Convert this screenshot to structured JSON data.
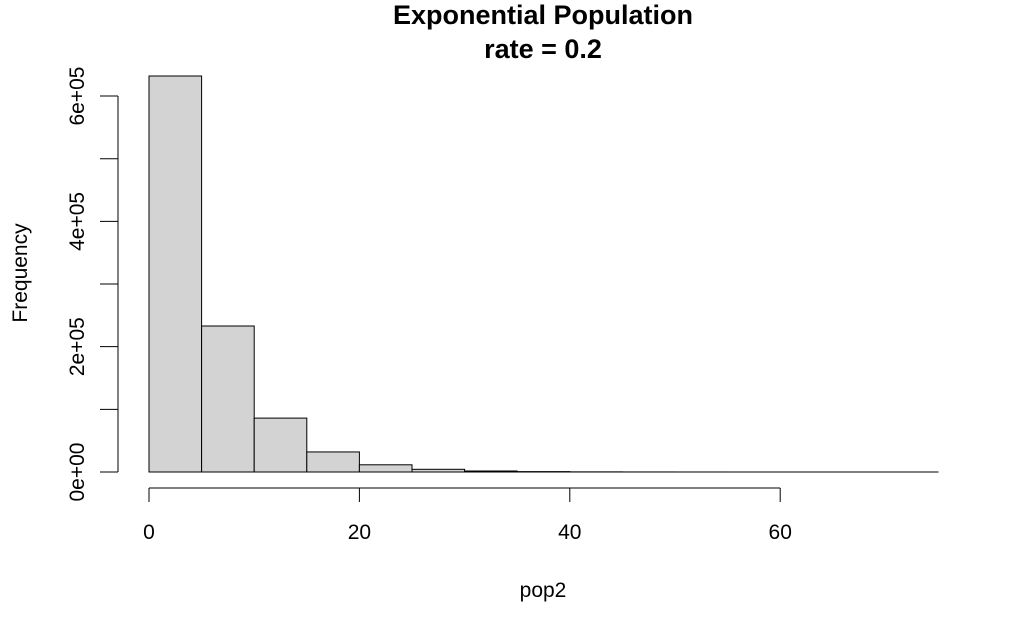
{
  "chart_data": {
    "type": "bar",
    "title": "Exponential Population",
    "subtitle": "rate = 0.2",
    "xlabel": "pop2",
    "ylabel": "Frequency",
    "xlim": [
      0,
      75
    ],
    "ylim": [
      0,
      632000
    ],
    "x_ticks": [
      {
        "value": 0,
        "label": "0"
      },
      {
        "value": 20,
        "label": "20"
      },
      {
        "value": 40,
        "label": "40"
      },
      {
        "value": 60,
        "label": "60"
      }
    ],
    "y_ticks": [
      {
        "value": 0,
        "label": "0e+00"
      },
      {
        "value": 100000,
        "label": ""
      },
      {
        "value": 200000,
        "label": "2e+05"
      },
      {
        "value": 300000,
        "label": ""
      },
      {
        "value": 400000,
        "label": "4e+05"
      },
      {
        "value": 500000,
        "label": ""
      },
      {
        "value": 600000,
        "label": "6e+05"
      }
    ],
    "bins": [
      {
        "from": 0,
        "to": 5,
        "count": 632000
      },
      {
        "from": 5,
        "to": 10,
        "count": 233000
      },
      {
        "from": 10,
        "to": 15,
        "count": 86000
      },
      {
        "from": 15,
        "to": 20,
        "count": 32000
      },
      {
        "from": 20,
        "to": 25,
        "count": 11500
      },
      {
        "from": 25,
        "to": 30,
        "count": 4300
      },
      {
        "from": 30,
        "to": 35,
        "count": 1600
      },
      {
        "from": 35,
        "to": 40,
        "count": 600
      },
      {
        "from": 40,
        "to": 45,
        "count": 220
      },
      {
        "from": 45,
        "to": 50,
        "count": 80
      },
      {
        "from": 50,
        "to": 55,
        "count": 30
      },
      {
        "from": 55,
        "to": 60,
        "count": 11
      },
      {
        "from": 60,
        "to": 65,
        "count": 4
      },
      {
        "from": 65,
        "to": 70,
        "count": 1
      },
      {
        "from": 70,
        "to": 75,
        "count": 1
      }
    ],
    "bar_color": "#d3d3d3",
    "grid": false,
    "legend": "none"
  }
}
